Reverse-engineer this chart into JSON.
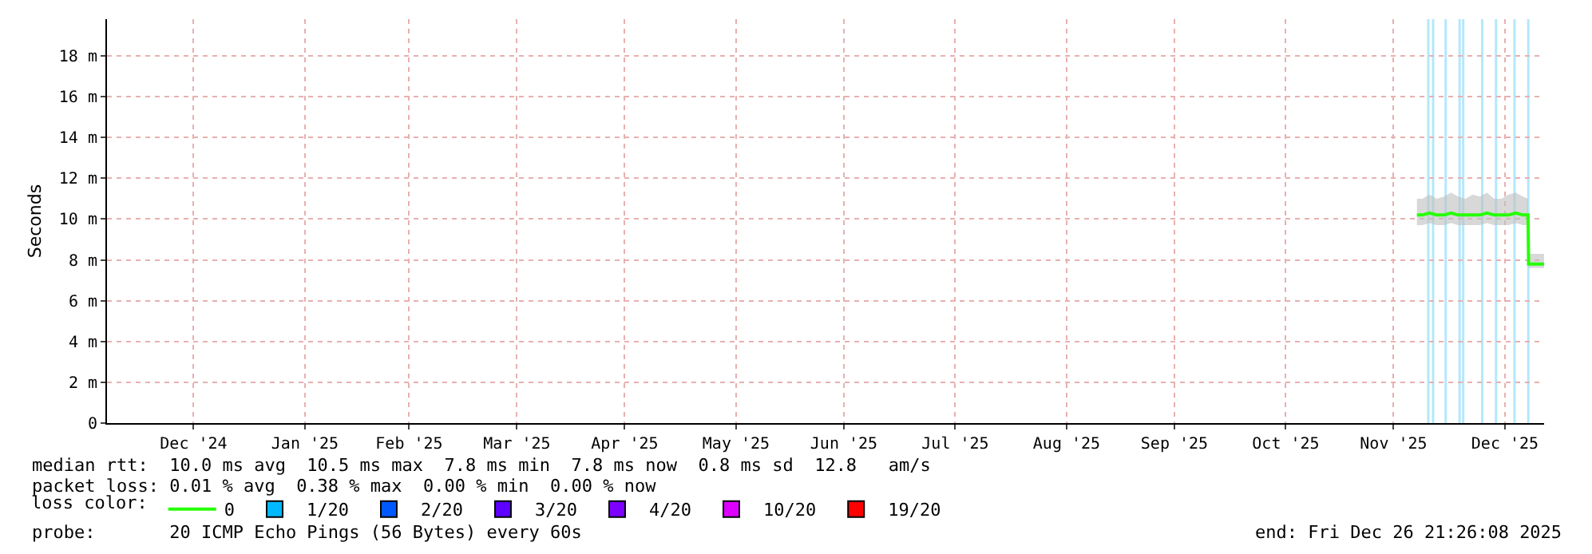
{
  "chart_data": {
    "type": "line",
    "ylabel": "Seconds",
    "xlim": [
      "2024-11-21T21:26",
      "2025-12-26T21:26"
    ],
    "xticks": [
      {
        "value": "2024-12-16",
        "label": "Dec '24"
      },
      {
        "value": "2025-01-16",
        "label": "Jan '25"
      },
      {
        "value": "2025-02-14",
        "label": "Feb '25"
      },
      {
        "value": "2025-03-16",
        "label": "Mar '25"
      },
      {
        "value": "2025-04-15",
        "label": "Apr '25"
      },
      {
        "value": "2025-05-16",
        "label": "May '25"
      },
      {
        "value": "2025-06-15",
        "label": "Jun '25"
      },
      {
        "value": "2025-07-16",
        "label": "Jul '25"
      },
      {
        "value": "2025-08-16",
        "label": "Aug '25"
      },
      {
        "value": "2025-09-15",
        "label": "Sep '25"
      },
      {
        "value": "2025-10-16",
        "label": "Oct '25"
      },
      {
        "value": "2025-11-15",
        "label": "Nov '25"
      },
      {
        "value": "2025-12-16",
        "label": "Dec '25"
      }
    ],
    "ylim": [
      0,
      19.8
    ],
    "yticks": [
      0,
      {
        "value": 2,
        "label": "2 m"
      },
      {
        "value": 4,
        "label": "4 m"
      },
      {
        "value": 6,
        "label": "6 m"
      },
      {
        "value": 8,
        "label": "8 m"
      },
      {
        "value": 10,
        "label": "10 m"
      },
      {
        "value": 12,
        "label": "12 m"
      },
      {
        "value": 14,
        "label": "14 m"
      },
      {
        "value": 16,
        "label": "16 m"
      },
      {
        "value": 18,
        "label": "18 m"
      }
    ],
    "grid": true,
    "marker": "none",
    "line_style": "solid",
    "legend": "bottom",
    "legend_title": "loss color:",
    "series": [
      {
        "name": "0",
        "color": "#26ff00",
        "x": [
          "2025-11-21T12:00",
          "2025-11-23T00:00",
          "2025-11-25T00:00",
          "2025-11-27T00:00",
          "2025-11-29T00:00",
          "2025-12-01T00:00",
          "2025-12-03T00:00",
          "2025-12-05T00:00",
          "2025-12-07T00:00",
          "2025-12-09T00:00",
          "2025-12-11T00:00",
          "2025-12-13T00:00",
          "2025-12-15T00:00",
          "2025-12-17T00:00",
          "2025-12-19T00:00",
          "2025-12-21T00:00",
          "2025-12-22T10:00",
          "2025-12-22T14:00",
          "2025-12-24T00:00",
          "2025-12-26T21:00"
        ],
        "values": [
          10.2,
          10.2,
          10.3,
          10.2,
          10.2,
          10.3,
          10.2,
          10.2,
          10.2,
          10.2,
          10.3,
          10.2,
          10.2,
          10.2,
          10.3,
          10.2,
          10.2,
          7.8,
          7.8,
          7.8
        ],
        "lower": [
          9.7,
          9.7,
          9.8,
          9.7,
          9.7,
          9.8,
          9.7,
          9.7,
          9.7,
          9.7,
          9.8,
          9.7,
          9.7,
          9.7,
          9.8,
          9.7,
          9.7,
          7.6,
          7.6,
          7.6
        ],
        "upper": [
          11.0,
          11.0,
          11.2,
          11.0,
          11.1,
          11.3,
          11.1,
          11.0,
          11.2,
          11.1,
          11.3,
          11.0,
          11.0,
          11.2,
          11.3,
          11.1,
          11.0,
          8.3,
          8.3,
          8.3
        ]
      },
      {
        "name": "1/20",
        "color": "#00b8ff"
      },
      {
        "name": "2/20",
        "color": "#0059ff"
      },
      {
        "name": "3/20",
        "color": "#5e00ff"
      },
      {
        "name": "4/20",
        "color": "#7e00ff"
      },
      {
        "name": "10/20",
        "color": "#dd00ff"
      },
      {
        "name": "19/20",
        "color": "#ff0000"
      }
    ],
    "ref_lines": [
      {
        "axis": "x",
        "value": "2025-11-24T16:00",
        "color": "#b3e8fb"
      },
      {
        "axis": "x",
        "value": "2025-11-26T00:00",
        "color": "#b3e8fb"
      },
      {
        "axis": "x",
        "value": "2025-11-29T12:00",
        "color": "#b3e8fb"
      },
      {
        "axis": "x",
        "value": "2025-12-03T09:00",
        "color": "#b3e8fb"
      },
      {
        "axis": "x",
        "value": "2025-12-04T09:00",
        "color": "#b3e8fb"
      },
      {
        "axis": "x",
        "value": "2025-12-09T16:00",
        "color": "#b3e8fb"
      },
      {
        "axis": "x",
        "value": "2025-12-13T12:00",
        "color": "#b3e8fb"
      },
      {
        "axis": "x",
        "value": "2025-12-18T16:00",
        "color": "#b3e8fb"
      },
      {
        "axis": "x",
        "value": "2025-12-22T12:00",
        "color": "#b3e8fb"
      }
    ],
    "annotations": [
      "median rtt:  10.0 ms avg  10.5 ms max  7.8 ms min  7.8 ms now  0.8 ms sd  12.8   am/s",
      "packet loss: 0.01 % avg  0.38 % max  0.00 % min  0.00 % now",
      "probe:       20 ICMP Echo Pings (56 Bytes) every 60s",
      "end: Fri Dec 26 21:26:08 2025"
    ]
  }
}
